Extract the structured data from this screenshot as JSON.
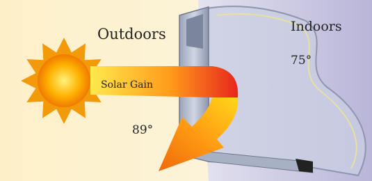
{
  "labels": {
    "outdoors": "Outdoors",
    "indoors": "Indoors",
    "indoor_temp": "75°",
    "solar_gain": "Solar Gain",
    "outdoor_temp": "89°"
  }
}
